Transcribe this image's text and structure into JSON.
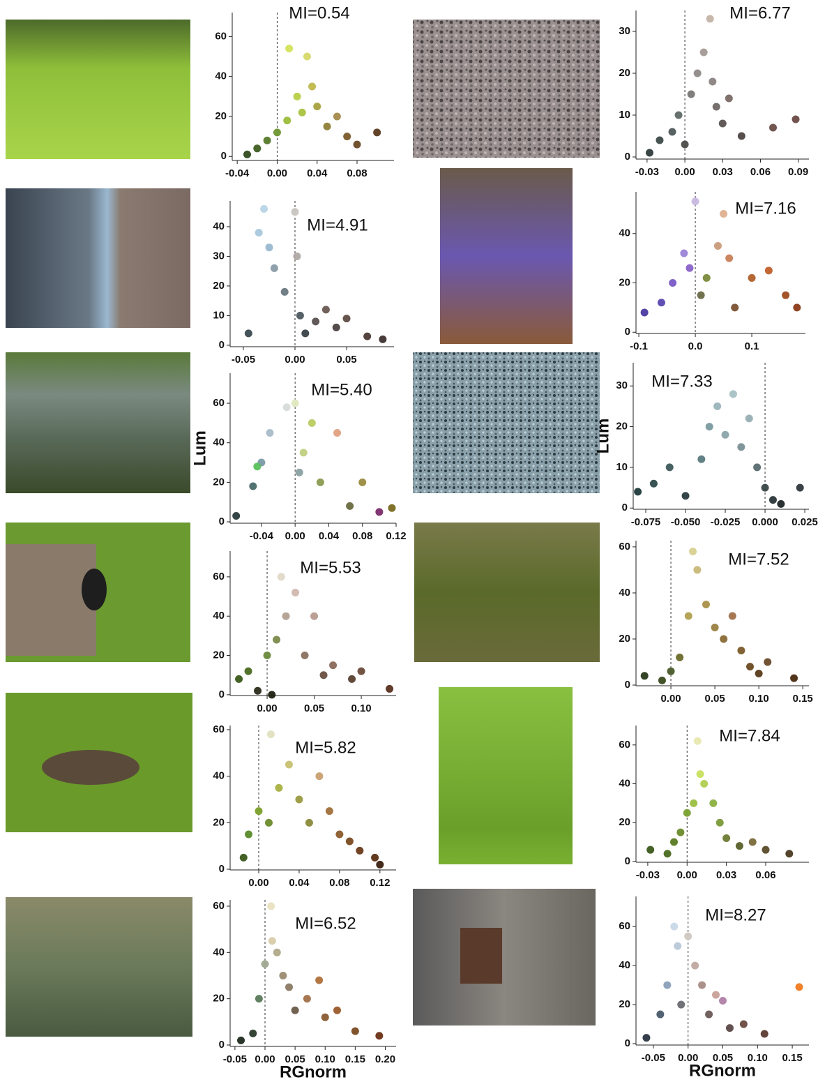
{
  "chart_data": [
    {
      "type": "scatter",
      "annotation": "MI=0.54",
      "xlim": [
        -0.045,
        0.117
      ],
      "ylim": [
        -2,
        72
      ],
      "xticks": [
        -0.04,
        {
          "value": 0,
          "label": "0.00"
        },
        0.04,
        0.08
      ],
      "yticks": [
        0,
        20,
        40,
        60
      ],
      "vline": 0,
      "x": [
        -0.03,
        -0.02,
        -0.01,
        0.0,
        0.01,
        0.012,
        0.02,
        0.025,
        0.03,
        0.035,
        0.04,
        0.05,
        0.06,
        0.07,
        0.08,
        0.1
      ],
      "y": [
        1,
        4,
        8,
        12,
        18,
        54,
        30,
        22,
        50,
        35,
        25,
        15,
        20,
        10,
        6,
        12
      ],
      "colors": [
        "#2f4a1c",
        "#3e5e22",
        "#557a2a",
        "#6f9632",
        "#9bbd3a",
        "#d3e35a",
        "#b9cf48",
        "#a9c23e",
        "#d6d86a",
        "#bfb84a",
        "#a7a23e",
        "#8e7f36",
        "#a48a4a",
        "#7a5a2a",
        "#6a4a24",
        "#5a3a1e"
      ]
    },
    {
      "type": "scatter",
      "annotation": "MI=6.77",
      "xlim": [
        -0.0388,
        0.0985
      ],
      "ylim": [
        -0.5,
        35
      ],
      "xticks": [
        -0.03,
        {
          "value": 0,
          "label": "0.00"
        },
        0.03,
        0.06,
        0.09
      ],
      "yticks": [
        0,
        10,
        20,
        30
      ],
      "vline": 0,
      "x": [
        -0.028,
        -0.02,
        -0.01,
        -0.005,
        0.0,
        0.005,
        0.01,
        0.015,
        0.02,
        0.022,
        0.025,
        0.03,
        0.035,
        0.045,
        0.07,
        0.088
      ],
      "y": [
        1,
        4,
        6,
        10,
        3,
        15,
        20,
        25,
        33,
        18,
        12,
        8,
        14,
        5,
        7,
        9
      ],
      "colors": [
        "#2e3a3a",
        "#3d4a48",
        "#4e5a58",
        "#5f6a66",
        "#4a4a48",
        "#7a7876",
        "#8f8a88",
        "#a39a96",
        "#c4b4a8",
        "#8a8280",
        "#6e6866",
        "#5a5250",
        "#7a6a66",
        "#4e4442",
        "#6a4e48",
        "#6a4a44"
      ]
    },
    {
      "type": "scatter",
      "annotation": "MI=4.91",
      "xlim": [
        -0.0628,
        0.0959
      ],
      "ylim": [
        -0.5,
        48.7
      ],
      "xticks": [
        -0.05,
        {
          "value": 0,
          "label": "0.00"
        },
        0.05
      ],
      "yticks": [
        0,
        10,
        20,
        30,
        40
      ],
      "vline": 0,
      "x": [
        -0.045,
        -0.035,
        -0.03,
        -0.025,
        -0.02,
        -0.01,
        0.0,
        0.002,
        0.005,
        0.01,
        0.02,
        0.03,
        0.04,
        0.05,
        0.07,
        0.085
      ],
      "y": [
        4,
        38,
        46,
        33,
        26,
        18,
        45,
        30,
        10,
        4,
        8,
        12,
        6,
        9,
        3,
        2
      ],
      "colors": [
        "#3a4a50",
        "#a8c8dc",
        "#b8d4e6",
        "#98b8d0",
        "#8a9ca8",
        "#6a7880",
        "#c8c4c0",
        "#b0a8a4",
        "#4e5a60",
        "#3a4248",
        "#5a5050",
        "#6a5852",
        "#4a4240",
        "#5e4c44",
        "#4a3a34",
        "#3e3230"
      ]
    },
    {
      "type": "scatter",
      "annotation": "MI=7.16",
      "xlim": [
        -0.105,
        0.195
      ],
      "ylim": [
        -0.5,
        56.9
      ],
      "xticks": [
        -0.1,
        {
          "value": 0,
          "label": "0.0"
        },
        0.1
      ],
      "yticks": [
        0,
        20,
        40
      ],
      "vline": 0,
      "x": [
        -0.09,
        -0.06,
        -0.04,
        -0.02,
        -0.01,
        0.0,
        0.01,
        0.02,
        0.04,
        0.05,
        0.06,
        0.07,
        0.1,
        0.13,
        0.16,
        0.18
      ],
      "y": [
        8,
        12,
        20,
        32,
        26,
        53,
        15,
        22,
        35,
        48,
        30,
        10,
        22,
        25,
        15,
        10
      ],
      "colors": [
        "#4a3aa0",
        "#5a46b0",
        "#7a5ac8",
        "#9a84d8",
        "#8a62c8",
        "#c8b8e0",
        "#6a6a48",
        "#7a8a3a",
        "#c89a7a",
        "#e0b090",
        "#c8805a",
        "#7a5030",
        "#b0602a",
        "#c0602a",
        "#a04a20",
        "#8a3a18"
      ]
    },
    {
      "type": "scatter",
      "annotation": "MI=5.40",
      "y_label": "Lum",
      "xlim": [
        -0.0772,
        0.12
      ],
      "ylim": [
        -0.7,
        75.2
      ],
      "xticks": [
        -0.04,
        {
          "value": 0,
          "label": "0.00"
        },
        0.04,
        0.08,
        0.12
      ],
      "yticks": [
        0,
        20,
        40,
        60
      ],
      "vline": 0,
      "x": [
        -0.07,
        -0.05,
        -0.04,
        -0.03,
        -0.01,
        0.0,
        0.005,
        0.01,
        0.02,
        0.03,
        0.05,
        0.065,
        0.08,
        0.1,
        0.115,
        -0.045
      ],
      "y": [
        3,
        18,
        30,
        45,
        58,
        60,
        25,
        35,
        50,
        20,
        45,
        8,
        20,
        5,
        7,
        28
      ],
      "colors": [
        "#2a3a3a",
        "#4a6a6a",
        "#7a9aa8",
        "#a8bcc8",
        "#d8dcd8",
        "#e0e8c0",
        "#8aa0a0",
        "#c0d080",
        "#b8cc60",
        "#8a9a50",
        "#e0a080",
        "#6a6a40",
        "#9a8a40",
        "#7a2a6a",
        "#7a6a20",
        "#5ac05a"
      ]
    },
    {
      "type": "scatter",
      "annotation": "MI=7.33",
      "y_label": "Lum",
      "xlim": [
        -0.0829,
        0.0276
      ],
      "ylim": [
        -0.3,
        35.7
      ],
      "xticks": [
        -0.075,
        {
          "value": -0.05,
          "label": "-0.050"
        },
        -0.025,
        {
          "value": 0,
          "label": "0.000"
        },
        0.025
      ],
      "yticks": [
        0,
        10,
        20,
        30
      ],
      "vline": 0,
      "x": [
        -0.08,
        -0.07,
        -0.06,
        -0.05,
        -0.04,
        -0.035,
        -0.03,
        -0.025,
        -0.02,
        -0.015,
        -0.01,
        -0.005,
        0.0,
        0.005,
        0.01,
        0.022
      ],
      "y": [
        4,
        6,
        10,
        3,
        12,
        20,
        25,
        18,
        28,
        15,
        22,
        10,
        5,
        2,
        1,
        5
      ],
      "colors": [
        "#1e3a3a",
        "#2e4a4a",
        "#3e5a5a",
        "#2a3a3e",
        "#5a7a80",
        "#7a9aa0",
        "#9ab4ba",
        "#8aa4aa",
        "#a8c0c4",
        "#7a9096",
        "#98aeb2",
        "#5a6c70",
        "#3a4648",
        "#2a3436",
        "#1e2628",
        "#2e383a"
      ]
    },
    {
      "type": "scatter",
      "annotation": "MI=5.53",
      "xlim": [
        -0.0393,
        0.137
      ],
      "ylim": [
        -0.4,
        73.1
      ],
      "xticks": [
        {
          "value": 0,
          "label": "0.00"
        },
        0.05,
        {
          "value": 0.1,
          "label": "0.10"
        }
      ],
      "yticks": [
        0,
        20,
        40,
        60
      ],
      "vline": 0,
      "x": [
        -0.03,
        -0.02,
        -0.01,
        0.0,
        0.005,
        0.01,
        0.015,
        0.02,
        0.03,
        0.04,
        0.05,
        0.06,
        0.07,
        0.09,
        0.1,
        0.13
      ],
      "y": [
        8,
        12,
        2,
        20,
        0,
        28,
        60,
        40,
        52,
        20,
        40,
        10,
        15,
        8,
        12,
        3
      ],
      "colors": [
        "#3a5a1a",
        "#4a6a22",
        "#2a2a1a",
        "#6a8a3a",
        "#1e2010",
        "#7a8a4a",
        "#e0d8c8",
        "#b0a090",
        "#d0b8b0",
        "#8a7060",
        "#b89a90",
        "#6a5040",
        "#8a6a5a",
        "#5a4030",
        "#6a4a3a",
        "#5a3020"
      ]
    },
    {
      "type": "scatter",
      "annotation": "MI=7.52",
      "xlim": [
        -0.0397,
        0.157
      ],
      "ylim": [
        -0.3,
        62.7
      ],
      "xticks": [
        {
          "value": 0,
          "label": "0.00"
        },
        0.05,
        {
          "value": 0.1,
          "label": "0.10"
        },
        0.15
      ],
      "yticks": [
        0,
        20,
        40,
        60
      ],
      "vline": 0,
      "x": [
        -0.03,
        -0.01,
        0.0,
        0.01,
        0.02,
        0.025,
        0.03,
        0.04,
        0.05,
        0.06,
        0.07,
        0.08,
        0.09,
        0.1,
        0.11,
        0.14
      ],
      "y": [
        4,
        2,
        6,
        12,
        30,
        58,
        50,
        35,
        25,
        20,
        30,
        15,
        8,
        5,
        10,
        3
      ],
      "colors": [
        "#2a3a1a",
        "#3a4a1e",
        "#4a5a2a",
        "#6a6a2a",
        "#b0a050",
        "#d8d090",
        "#c8b878",
        "#a89048",
        "#9a8040",
        "#8a6a36",
        "#a0704a",
        "#7a5a2a",
        "#6a4a22",
        "#5a3a1a",
        "#6a4a2a",
        "#4a2a10"
      ]
    },
    {
      "type": "scatter",
      "annotation": "MI=5.82",
      "xlim": [
        -0.0283,
        0.136
      ],
      "ylim": [
        -0.3,
        61.8
      ],
      "xticks": [
        {
          "value": 0,
          "label": "0.00"
        },
        0.04,
        0.08,
        0.12
      ],
      "yticks": [
        0,
        20,
        40,
        60
      ],
      "vline": 0,
      "x": [
        -0.015,
        -0.01,
        0.0,
        0.01,
        0.012,
        0.02,
        0.03,
        0.04,
        0.05,
        0.06,
        0.07,
        0.08,
        0.09,
        0.1,
        0.115,
        0.12
      ],
      "y": [
        5,
        15,
        25,
        20,
        58,
        35,
        45,
        30,
        20,
        40,
        25,
        15,
        12,
        8,
        5,
        2
      ],
      "colors": [
        "#3a5a1a",
        "#5a8a2a",
        "#7aa02a",
        "#6a8a2a",
        "#e0e0c0",
        "#a8b040",
        "#c8c070",
        "#9a9a40",
        "#8a8a3a",
        "#c8a070",
        "#a0703a",
        "#8a5a2a",
        "#7a4a20",
        "#6a3a1a",
        "#5a3014",
        "#3a2010"
      ]
    },
    {
      "type": "scatter",
      "annotation": "MI=7.84",
      "xlim": [
        -0.039,
        0.093
      ],
      "ylim": [
        -0.4,
        70
      ],
      "xticks": [
        -0.03,
        {
          "value": 0,
          "label": "0.00"
        },
        0.03,
        0.06
      ],
      "yticks": [
        0,
        20,
        40,
        60
      ],
      "vline": 0,
      "x": [
        -0.028,
        -0.015,
        -0.01,
        -0.005,
        0.0,
        0.005,
        0.008,
        0.01,
        0.013,
        0.02,
        0.025,
        0.03,
        0.04,
        0.05,
        0.06,
        0.078
      ],
      "y": [
        6,
        4,
        10,
        15,
        25,
        30,
        62,
        45,
        40,
        30,
        20,
        12,
        8,
        10,
        6,
        4
      ],
      "colors": [
        "#3a5a1a",
        "#4a6a1e",
        "#5a7a22",
        "#6a8a2a",
        "#7aa030",
        "#9ac040",
        "#e8e8b0",
        "#c8e060",
        "#b0d050",
        "#8ab040",
        "#7a9a38",
        "#6a7a30",
        "#5a6028",
        "#7a6a3a",
        "#5a4a2a",
        "#4a3a20"
      ]
    },
    {
      "type": "scatter",
      "annotation": "MI=6.52",
      "x_label": "RGnorm",
      "xlim": [
        -0.058,
        0.218
      ],
      "ylim": [
        -0.6,
        62.7
      ],
      "xticks": [
        -0.05,
        {
          "value": 0,
          "label": "0.00"
        },
        0.05,
        {
          "value": 0.1,
          "label": "0.10"
        },
        0.15,
        {
          "value": 0.2,
          "label": "0.20"
        }
      ],
      "yticks": [
        0,
        20,
        40,
        60
      ],
      "vline": 0,
      "x": [
        -0.04,
        -0.02,
        -0.01,
        0.0,
        0.01,
        0.012,
        0.02,
        0.03,
        0.04,
        0.05,
        0.07,
        0.09,
        0.1,
        0.12,
        0.15,
        0.19
      ],
      "y": [
        2,
        5,
        20,
        35,
        60,
        45,
        40,
        30,
        25,
        15,
        20,
        28,
        12,
        15,
        6,
        4
      ],
      "colors": [
        "#1e2a1e",
        "#2a3a2a",
        "#5a7a5a",
        "#a0a890",
        "#e8e0c0",
        "#d8cca8",
        "#b0a888",
        "#9a8a70",
        "#8a7a64",
        "#6a5a48",
        "#a0704a",
        "#b0703a",
        "#8a5a30",
        "#9a5a2a",
        "#7a4a20",
        "#6a3014"
      ]
    },
    {
      "type": "scatter",
      "annotation": "MI=8.27",
      "x_label": "RGnorm",
      "xlim": [
        -0.075,
        0.174
      ],
      "ylim": [
        -0.7,
        75.4
      ],
      "xticks": [
        -0.05,
        {
          "value": 0,
          "label": "0.00"
        },
        0.05,
        {
          "value": 0.1,
          "label": "0.10"
        },
        0.15
      ],
      "yticks": [
        0,
        20,
        40,
        60
      ],
      "vline": 0,
      "x": [
        -0.06,
        -0.04,
        -0.03,
        -0.02,
        -0.015,
        -0.01,
        0.0,
        0.01,
        0.02,
        0.03,
        0.04,
        0.05,
        0.06,
        0.08,
        0.11,
        0.16
      ],
      "y": [
        3,
        15,
        30,
        60,
        50,
        20,
        55,
        40,
        30,
        15,
        25,
        22,
        8,
        10,
        5,
        29
      ],
      "colors": [
        "#2a3440",
        "#4a5a6a",
        "#8aa0b8",
        "#c8d8e8",
        "#b8c8d8",
        "#6a6a72",
        "#d0c8c0",
        "#c0a8a0",
        "#a88a84",
        "#6a5a56",
        "#c8a098",
        "#b080a8",
        "#5a4844",
        "#6a4a40",
        "#5a3a30",
        "#f07a20"
      ]
    }
  ]
}
